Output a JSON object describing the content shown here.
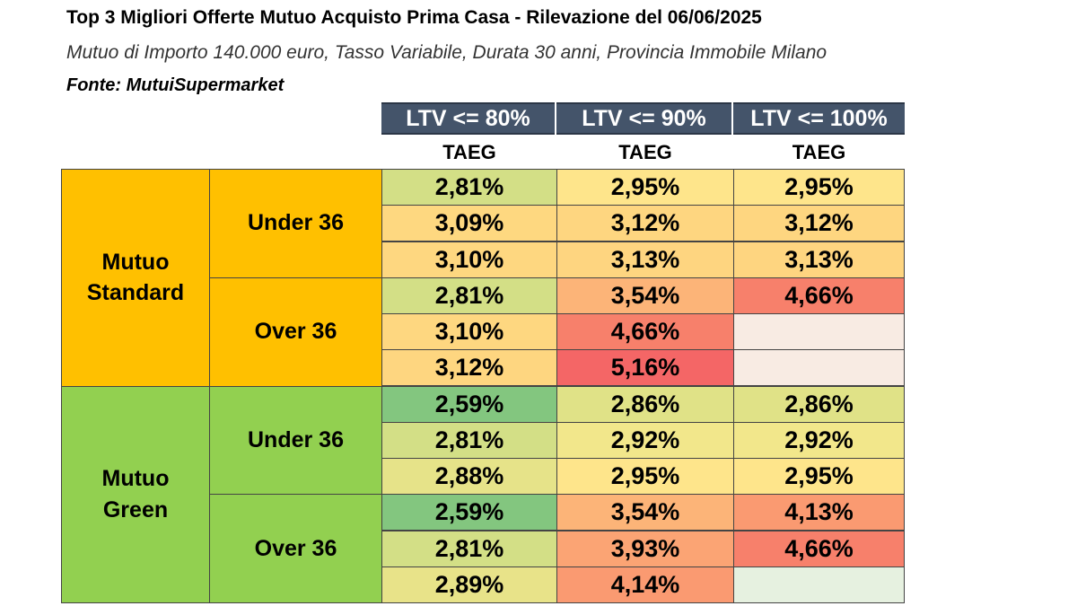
{
  "header": {
    "title": "Top 3 Migliori Offerte Mutuo Acquisto Prima Casa - Rilevazione del 06/06/2025",
    "subtitle": "Mutuo di Importo 140.000 euro, Tasso Variabile, Durata 30 anni, Provincia Immobile Milano",
    "source": "Fonte: MutuiSupermarket"
  },
  "columns": [
    {
      "ltv": "LTV <= 80%",
      "metric": "TAEG"
    },
    {
      "ltv": "LTV <= 90%",
      "metric": "TAEG"
    },
    {
      "ltv": "LTV <= 100%",
      "metric": "TAEG"
    }
  ],
  "colors": {
    "standard": "#ffc000",
    "green": "#92d050",
    "ltv_header_bg": "#44546a"
  },
  "groups": [
    {
      "name_line1": "Mutuo",
      "name_line2": "Standard",
      "color": "#ffc000",
      "subgroups": [
        {
          "label": "Under 36",
          "rows": [
            [
              {
                "value": "2,81%",
                "color": "#d3df86"
              },
              {
                "value": "2,95%",
                "color": "#fee58b"
              },
              {
                "value": "2,95%",
                "color": "#fee58b"
              }
            ],
            [
              {
                "value": "3,09%",
                "color": "#fed880"
              },
              {
                "value": "3,12%",
                "color": "#fed680"
              },
              {
                "value": "3,12%",
                "color": "#fed680"
              }
            ],
            [
              {
                "value": "3,10%",
                "color": "#fed780"
              },
              {
                "value": "3,13%",
                "color": "#fed580"
              },
              {
                "value": "3,13%",
                "color": "#fed580"
              }
            ]
          ]
        },
        {
          "label": "Over 36",
          "rows": [
            [
              {
                "value": "2,81%",
                "color": "#d3df86"
              },
              {
                "value": "3,54%",
                "color": "#fcb478"
              },
              {
                "value": "4,66%",
                "color": "#f7806b"
              }
            ],
            [
              {
                "value": "3,10%",
                "color": "#fed780"
              },
              {
                "value": "4,66%",
                "color": "#f7806b"
              },
              {
                "value": "",
                "color": "#f8ebe3"
              }
            ],
            [
              {
                "value": "3,12%",
                "color": "#fed680"
              },
              {
                "value": "5,16%",
                "color": "#f46666"
              },
              {
                "value": "",
                "color": "#f8ebe3"
              }
            ]
          ]
        }
      ]
    },
    {
      "name_line1": "Mutuo",
      "name_line2": "Green",
      "color": "#92d050",
      "subgroups": [
        {
          "label": "Under 36",
          "rows": [
            [
              {
                "value": "2,59%",
                "color": "#83c67f"
              },
              {
                "value": "2,86%",
                "color": "#e0e287"
              },
              {
                "value": "2,86%",
                "color": "#e0e287"
              }
            ],
            [
              {
                "value": "2,81%",
                "color": "#d3df86"
              },
              {
                "value": "2,92%",
                "color": "#f2e78b"
              },
              {
                "value": "2,92%",
                "color": "#f2e78b"
              }
            ],
            [
              {
                "value": "2,88%",
                "color": "#e6e389"
              },
              {
                "value": "2,95%",
                "color": "#fee58b"
              },
              {
                "value": "2,95%",
                "color": "#fee58b"
              }
            ]
          ]
        },
        {
          "label": "Over 36",
          "rows": [
            [
              {
                "value": "2,59%",
                "color": "#83c67f"
              },
              {
                "value": "3,54%",
                "color": "#fcb478"
              },
              {
                "value": "4,13%",
                "color": "#fa9a71"
              }
            ],
            [
              {
                "value": "2,81%",
                "color": "#d3df86"
              },
              {
                "value": "3,93%",
                "color": "#fba474"
              },
              {
                "value": "4,66%",
                "color": "#f7806b"
              }
            ],
            [
              {
                "value": "2,89%",
                "color": "#e8e389"
              },
              {
                "value": "4,14%",
                "color": "#fa9a71"
              },
              {
                "value": "",
                "color": "#e6f1e0"
              }
            ]
          ]
        }
      ]
    }
  ]
}
